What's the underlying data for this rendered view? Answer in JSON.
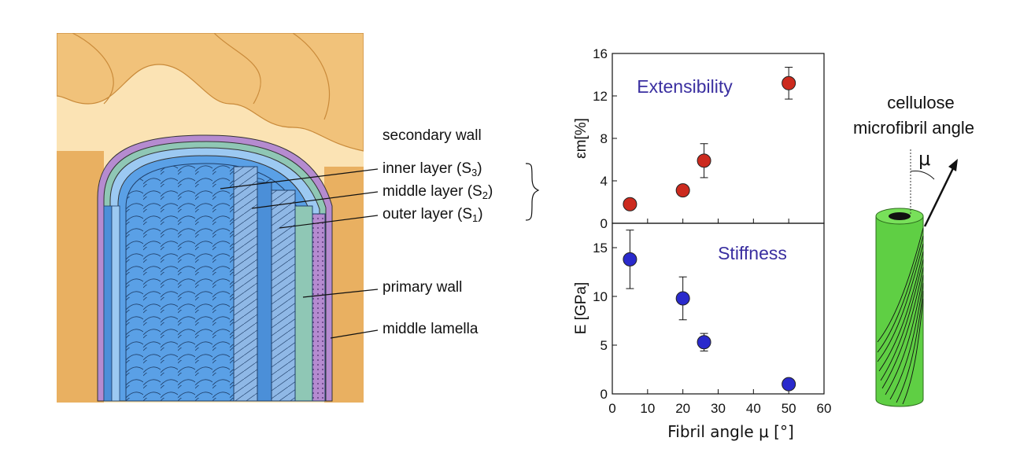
{
  "wall_labels": {
    "secondary_wall": "secondary wall",
    "inner_layer": "inner layer (S",
    "inner_sub": "3",
    "middle_layer": "middle layer (S",
    "middle_sub": "2",
    "outer_layer": "outer layer (S",
    "outer_sub": "1",
    "close_paren": ")",
    "primary_wall": "primary wall",
    "middle_lamella": "middle lamella"
  },
  "fibril_title_line1": "cellulose",
  "fibril_title_line2": "microfibril angle",
  "fibril_angle_symbol": "μ",
  "colors": {
    "lamella_tan": "#f1c27a",
    "lamella_dark": "#d9a04f",
    "wall_blue": "#5aa0e6",
    "wall_light": "#9cc9f2",
    "primary_teal": "#8fc7b5",
    "lamella_purple": "#b58bd0",
    "red_marker": "#cc2a1e",
    "blue_marker": "#2a2acc",
    "text_label_blue": "#3a2fa0",
    "fibril_green": "#5fcf44"
  },
  "chart_data": [
    {
      "type": "scatter",
      "title": "Extensibility",
      "xlabel": "",
      "ylabel": "εm[%]",
      "xlim": [
        0,
        60
      ],
      "ylim": [
        0,
        16
      ],
      "yticks": [
        "0",
        "4",
        "8",
        "12",
        "16"
      ],
      "points": [
        {
          "x": 5,
          "y": 1.8,
          "err": 0
        },
        {
          "x": 20,
          "y": 3.1,
          "err": 0
        },
        {
          "x": 26,
          "y": 5.9,
          "err": 1.6
        },
        {
          "x": 50,
          "y": 13.2,
          "err": 1.5
        }
      ]
    },
    {
      "type": "scatter",
      "title": "Stiffness",
      "xlabel": "Fibril angle μ [°]",
      "ylabel": "E [GPa]",
      "xlim": [
        0,
        60
      ],
      "ylim": [
        0,
        17.5
      ],
      "yticks": [
        "0",
        "5",
        "10",
        "15"
      ],
      "xticks": [
        "0",
        "10",
        "20",
        "30",
        "40",
        "50",
        "60"
      ],
      "points": [
        {
          "x": 5,
          "y": 13.8,
          "err": 3.0
        },
        {
          "x": 20,
          "y": 9.8,
          "err": 2.2
        },
        {
          "x": 26,
          "y": 5.3,
          "err": 0.9
        },
        {
          "x": 50,
          "y": 1.0,
          "err": 0
        }
      ]
    }
  ]
}
